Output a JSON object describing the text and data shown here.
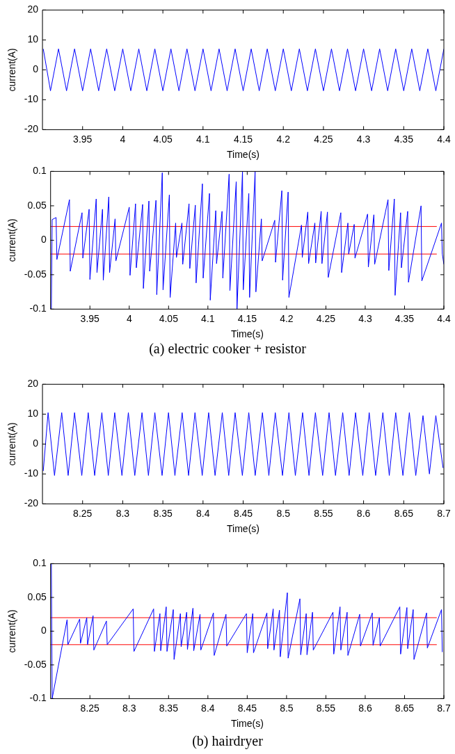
{
  "chart_data": [
    {
      "type": "line",
      "xlabel": "Time(s)",
      "ylabel": "current(A)",
      "xlim": [
        3.9,
        4.4
      ],
      "ylim": [
        -20,
        20
      ],
      "xticks": [
        3.95,
        4,
        4.05,
        4.1,
        4.15,
        4.2,
        4.25,
        4.3,
        4.35,
        4.4
      ],
      "yticks": [
        -20,
        -10,
        0,
        10,
        20
      ],
      "series": [
        {
          "color": "#0000ff",
          "x": [
            3.901,
            3.91,
            3.92,
            3.93,
            3.94,
            3.95,
            3.96,
            3.97,
            3.98,
            3.99,
            4,
            4.01,
            4.02,
            4.03,
            4.04,
            4.05,
            4.06,
            4.07,
            4.08,
            4.09,
            4.1,
            4.11,
            4.12,
            4.13,
            4.14,
            4.15,
            4.16,
            4.17,
            4.18,
            4.19,
            4.2,
            4.21,
            4.22,
            4.23,
            4.24,
            4.25,
            4.26,
            4.27,
            4.28,
            4.29,
            4.3,
            4.31,
            4.32,
            4.33,
            4.34,
            4.35,
            4.36,
            4.37,
            4.38,
            4.39,
            4.4
          ],
          "values": [
            7,
            -7,
            7,
            -7,
            7,
            -7,
            7,
            -7,
            7,
            -7,
            7,
            -7,
            7,
            -7,
            7,
            -7,
            7,
            -7,
            7,
            -7,
            7,
            -7,
            7,
            -7,
            7,
            -7,
            7,
            -7,
            7,
            -7,
            7,
            -7,
            7,
            -7,
            7,
            -7,
            7,
            -7,
            7,
            -7,
            7,
            -7,
            7,
            -7,
            7,
            -7,
            7,
            -7,
            7,
            -7,
            7
          ]
        }
      ]
    },
    {
      "type": "line",
      "xlabel": "Time(s)",
      "ylabel": "current(A)",
      "xlim": [
        3.9,
        4.4
      ],
      "ylim": [
        -0.1,
        0.1
      ],
      "xticks": [
        3.95,
        4,
        4.05,
        4.1,
        4.15,
        4.2,
        4.25,
        4.3,
        4.35,
        4.4
      ],
      "yticks": [
        -0.1,
        -0.05,
        0,
        0.05,
        0.1
      ],
      "annotations": [
        "(a) electric cooker + resistor"
      ],
      "series": [
        {
          "color": "#0000ff",
          "x": [
            3.901,
            3.902,
            3.907,
            3.908,
            3.924,
            3.925,
            3.94,
            3.941,
            3.949,
            3.95,
            3.958,
            3.959,
            3.966,
            3.967,
            3.974,
            3.975,
            3.982,
            3.983,
            4,
            4.001,
            4.008,
            4.009,
            4.017,
            4.018,
            4.025,
            4.026,
            4.034,
            4.035,
            4.042,
            4.043,
            4.051,
            4.052,
            4.059,
            4.06,
            4.067,
            4.068,
            4.076,
            4.077,
            4.084,
            4.085,
            4.093,
            4.094,
            4.102,
            4.103,
            4.11,
            4.111,
            4.118,
            4.119,
            4.127,
            4.128,
            4.136,
            4.137,
            4.144,
            4.145,
            4.152,
            4.153,
            4.16,
            4.161,
            4.168,
            4.169,
            4.185,
            4.186,
            4.194,
            4.195,
            4.202,
            4.203,
            4.219,
            4.22,
            4.227,
            4.228,
            4.236,
            4.237,
            4.244,
            4.245,
            4.252,
            4.253,
            4.269,
            4.27,
            4.278,
            4.279,
            4.286,
            4.287,
            4.303,
            4.304,
            4.311,
            4.312,
            4.329,
            4.33,
            4.337,
            4.338,
            4.345,
            4.346,
            4.354,
            4.355,
            4.371,
            4.372,
            4.397,
            4.398,
            4.4
          ],
          "values": [
            -0.1,
            0.03,
            0.033,
            -0.028,
            0.059,
            -0.045,
            0.04,
            -0.026,
            0.045,
            -0.057,
            0.06,
            -0.047,
            0.045,
            -0.058,
            0.063,
            -0.047,
            0.031,
            -0.03,
            0.048,
            -0.051,
            0.053,
            -0.04,
            0.052,
            -0.07,
            0.057,
            -0.045,
            0.058,
            -0.079,
            0.098,
            -0.072,
            0.066,
            -0.083,
            0.025,
            -0.025,
            0.025,
            -0.035,
            0.053,
            -0.041,
            0.051,
            -0.062,
            0.082,
            -0.055,
            0.068,
            -0.087,
            0.043,
            -0.034,
            0.042,
            -0.055,
            0.096,
            -0.073,
            0.085,
            -0.1,
            0.1,
            -0.072,
            0.068,
            -0.083,
            0.1,
            -0.075,
            0.031,
            -0.03,
            0.029,
            -0.032,
            0.072,
            -0.058,
            0.07,
            -0.083,
            0.022,
            -0.025,
            0.041,
            -0.034,
            0.025,
            -0.033,
            0.042,
            -0.034,
            0.041,
            -0.054,
            0.04,
            -0.047,
            0.025,
            -0.02,
            0.023,
            -0.026,
            0.038,
            -0.039,
            0.037,
            -0.035,
            0.059,
            -0.044,
            0.06,
            -0.08,
            0.04,
            -0.04,
            0.042,
            -0.061,
            0.05,
            -0.059,
            0.025,
            -0.02,
            -0.035
          ]
        },
        {
          "type": "line",
          "color": "#ff0000",
          "x": [
            3.9,
            4.391
          ],
          "values": [
            0.02,
            0.02
          ]
        },
        {
          "type": "line",
          "color": "#ff0000",
          "x": [
            3.9,
            4.391
          ],
          "values": [
            -0.02,
            -0.02
          ]
        }
      ]
    },
    {
      "type": "line",
      "xlabel": "Time(s)",
      "ylabel": "current(A)",
      "xlim": [
        8.2,
        8.7
      ],
      "ylim": [
        -20,
        20
      ],
      "xticks": [
        8.25,
        8.3,
        8.35,
        8.4,
        8.45,
        8.5,
        8.55,
        8.6,
        8.65,
        8.7
      ],
      "yticks": [
        -20,
        -10,
        0,
        10,
        20
      ],
      "series": [
        {
          "color": "#0000ff",
          "x": [
            8.201,
            8.207,
            8.215,
            8.224,
            8.232,
            8.24,
            8.249,
            8.257,
            8.265,
            8.274,
            8.282,
            8.29,
            8.299,
            8.307,
            8.315,
            8.324,
            8.332,
            8.34,
            8.349,
            8.357,
            8.365,
            8.374,
            8.382,
            8.39,
            8.399,
            8.407,
            8.415,
            8.424,
            8.432,
            8.44,
            8.449,
            8.457,
            8.465,
            8.474,
            8.482,
            8.49,
            8.499,
            8.507,
            8.515,
            8.524,
            8.532,
            8.54,
            8.549,
            8.557,
            8.565,
            8.574,
            8.582,
            8.59,
            8.599,
            8.607,
            8.615,
            8.624,
            8.632,
            8.64,
            8.649,
            8.657,
            8.665,
            8.674,
            8.682,
            8.69,
            8.699
          ],
          "values": [
            -9,
            10.5,
            -10.5,
            10.5,
            -10.5,
            10.5,
            -10.5,
            10.5,
            -10.5,
            10.5,
            -10.5,
            10.5,
            -10.5,
            10.5,
            -10.5,
            10.5,
            -10.5,
            10.5,
            -10.5,
            10.5,
            -10.5,
            10.5,
            -10.5,
            10.5,
            -10.5,
            10.5,
            -10.5,
            10.5,
            -10.5,
            10.5,
            -10.5,
            10.5,
            -10.5,
            10.5,
            -10.5,
            10.5,
            -10.5,
            10.5,
            -10.5,
            10.5,
            -10.5,
            10.5,
            -10.5,
            10.5,
            -10.5,
            10.5,
            -10.5,
            10.5,
            -10.5,
            10.5,
            -10.5,
            10.5,
            -10.5,
            10.5,
            -10.5,
            10.5,
            -10.5,
            9.5,
            -10,
            9.5,
            -8
          ]
        }
      ]
    },
    {
      "type": "line",
      "xlabel": "Time(s)",
      "ylabel": "current(A)",
      "xlim": [
        8.2,
        8.7
      ],
      "ylim": [
        -0.1,
        0.1
      ],
      "xticks": [
        8.25,
        8.3,
        8.35,
        8.4,
        8.45,
        8.5,
        8.55,
        8.6,
        8.65,
        8.7
      ],
      "yticks": [
        -0.1,
        -0.05,
        0,
        0.05,
        0.1
      ],
      "annotations": [
        "(b) hairdryer"
      ],
      "series": [
        {
          "color": "#0000ff",
          "x": [
            8.201,
            8.202,
            8.221,
            8.222,
            8.237,
            8.238,
            8.246,
            8.247,
            8.254,
            8.255,
            8.271,
            8.272,
            8.305,
            8.306,
            8.331,
            8.332,
            8.339,
            8.34,
            8.347,
            8.348,
            8.356,
            8.357,
            8.365,
            8.366,
            8.373,
            8.374,
            8.381,
            8.382,
            8.39,
            8.391,
            8.407,
            8.408,
            8.423,
            8.424,
            8.449,
            8.45,
            8.457,
            8.458,
            8.475,
            8.476,
            8.483,
            8.484,
            8.491,
            8.492,
            8.501,
            8.502,
            8.517,
            8.518,
            8.525,
            8.526,
            8.533,
            8.534,
            8.559,
            8.56,
            8.568,
            8.569,
            8.577,
            8.578,
            8.593,
            8.594,
            8.609,
            8.61,
            8.618,
            8.619,
            8.644,
            8.645,
            8.653,
            8.654,
            8.661,
            8.662,
            8.678,
            8.679,
            8.697,
            8.698
          ],
          "values": [
            0.1,
            -0.1,
            0.017,
            -0.02,
            0.018,
            -0.018,
            0.02,
            -0.02,
            0.023,
            -0.028,
            0.015,
            -0.02,
            0.033,
            -0.03,
            0.033,
            -0.03,
            0.026,
            -0.029,
            0.036,
            -0.03,
            0.032,
            -0.042,
            0.026,
            -0.023,
            0.028,
            -0.027,
            0.034,
            -0.029,
            0.025,
            -0.028,
            0.027,
            -0.036,
            0.025,
            -0.022,
            0.026,
            -0.032,
            0.026,
            -0.032,
            0.027,
            -0.026,
            0.033,
            -0.028,
            0.031,
            -0.038,
            0.057,
            -0.04,
            0.048,
            -0.035,
            0.026,
            -0.035,
            0.028,
            -0.028,
            0.028,
            -0.034,
            0.036,
            -0.028,
            0.028,
            -0.036,
            0.025,
            -0.022,
            0.027,
            -0.021,
            0.02,
            -0.022,
            0.036,
            -0.034,
            0.035,
            -0.026,
            0.032,
            -0.042,
            0.027,
            -0.025,
            0.032,
            -0.031
          ]
        },
        {
          "type": "line",
          "color": "#ff0000",
          "x": [
            8.2,
            8.691
          ],
          "values": [
            0.02,
            0.02
          ]
        },
        {
          "type": "line",
          "color": "#ff0000",
          "x": [
            8.2,
            8.691
          ],
          "values": [
            -0.02,
            -0.02
          ]
        }
      ]
    }
  ]
}
